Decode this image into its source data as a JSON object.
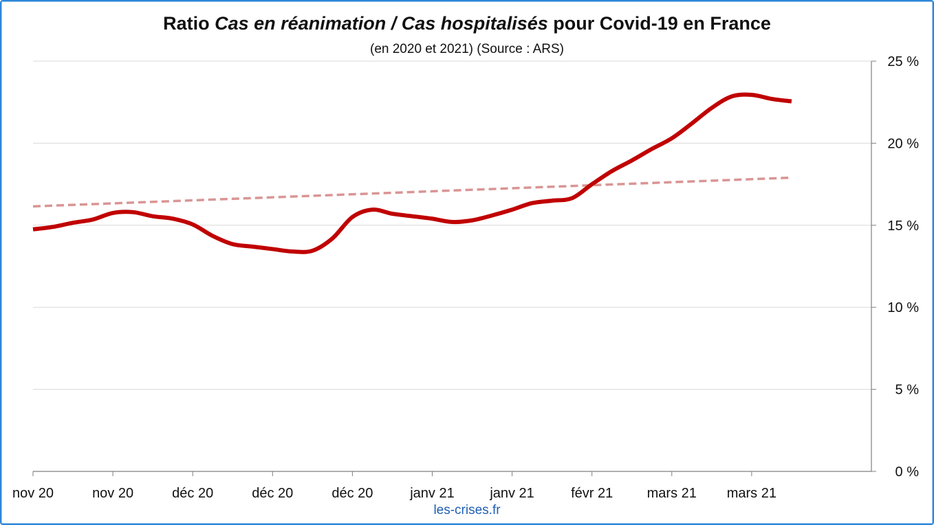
{
  "chart_data": {
    "type": "line",
    "title": {
      "prefix": "Ratio ",
      "italic": "Cas en réanimation / Cas hospitalisés",
      "suffix": " pour Covid-19 en France"
    },
    "subtitle": "(en 2020 et 2021) (Source : ARS)",
    "credit": "les-crises.fr",
    "xlabel": "",
    "ylabel": "",
    "x_tick_labels": [
      "nov 20",
      "nov 20",
      "déc 20",
      "déc 20",
      "déc 20",
      "janv 21",
      "janv 21",
      "févr 21",
      "mars 21",
      "mars 21"
    ],
    "y_tick_labels": [
      "0 %",
      "5 %",
      "10 %",
      "15 %",
      "20 %",
      "25 %"
    ],
    "ylim": [
      0,
      25
    ],
    "y_axis_position": "right",
    "grid": true,
    "x_count": 10.5,
    "series": [
      {
        "style": "solid",
        "color": "#c00000",
        "points": [
          [
            0,
            14.75
          ],
          [
            0.25,
            14.9
          ],
          [
            0.5,
            15.15
          ],
          [
            0.75,
            15.35
          ],
          [
            1,
            15.75
          ],
          [
            1.25,
            15.8
          ],
          [
            1.5,
            15.55
          ],
          [
            1.75,
            15.4
          ],
          [
            2,
            15.05
          ],
          [
            2.25,
            14.35
          ],
          [
            2.5,
            13.85
          ],
          [
            2.75,
            13.7
          ],
          [
            3,
            13.55
          ],
          [
            3.25,
            13.4
          ],
          [
            3.5,
            13.45
          ],
          [
            3.75,
            14.2
          ],
          [
            4,
            15.5
          ],
          [
            4.25,
            15.95
          ],
          [
            4.5,
            15.7
          ],
          [
            4.75,
            15.55
          ],
          [
            5,
            15.4
          ],
          [
            5.25,
            15.2
          ],
          [
            5.5,
            15.3
          ],
          [
            5.75,
            15.6
          ],
          [
            6,
            15.95
          ],
          [
            6.25,
            16.35
          ],
          [
            6.5,
            16.5
          ],
          [
            6.75,
            16.65
          ],
          [
            7,
            17.5
          ],
          [
            7.25,
            18.3
          ],
          [
            7.5,
            18.95
          ],
          [
            7.75,
            19.65
          ],
          [
            8,
            20.3
          ],
          [
            8.25,
            21.2
          ],
          [
            8.5,
            22.15
          ],
          [
            8.75,
            22.85
          ],
          [
            9,
            22.95
          ],
          [
            9.25,
            22.7
          ],
          [
            9.5,
            22.55
          ]
        ]
      },
      {
        "style": "dashed",
        "color": "#d99594",
        "points": [
          [
            0,
            16.15
          ],
          [
            9.5,
            17.9
          ]
        ]
      }
    ]
  },
  "colors": {
    "frame": "#2e86d8",
    "grid": "#d9d9d9",
    "axis": "#7f7f7f",
    "credit": "#1f5fb4"
  }
}
